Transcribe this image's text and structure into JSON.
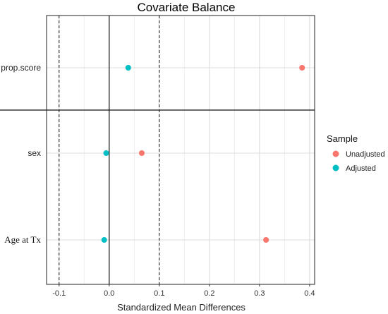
{
  "chart_data": {
    "type": "scatter",
    "title": "Covariate Balance",
    "xlabel": "Standardized Mean Differences",
    "ylabel": "",
    "xlim": [
      -0.125,
      0.41
    ],
    "x_ticks": [
      -0.1,
      0.0,
      0.1,
      0.2,
      0.3,
      0.4
    ],
    "x_tick_labels": [
      "-0.1",
      "0.0",
      "0.1",
      "0.2",
      "0.3",
      "0.4"
    ],
    "categories": [
      "prop.score",
      "sex",
      "Age at Tx"
    ],
    "threshold_lines": [
      -0.1,
      0.1
    ],
    "zero_line": 0,
    "grid": true,
    "legend": {
      "title": "Sample",
      "placement": "right"
    },
    "series": [
      {
        "name": "Unadjusted",
        "color": "#F8766D",
        "values": [
          0.385,
          0.065,
          0.313
        ]
      },
      {
        "name": "Adjusted",
        "color": "#00BFC4",
        "values": [
          0.038,
          -0.006,
          -0.01
        ]
      }
    ]
  }
}
